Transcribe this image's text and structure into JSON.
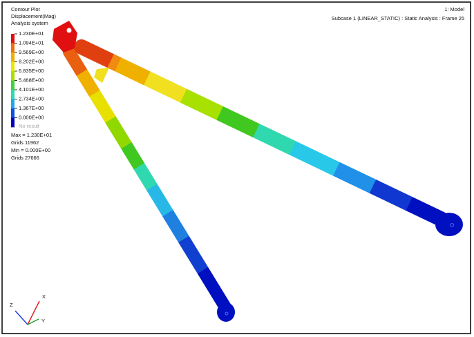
{
  "legend": {
    "title": [
      "Contour Plot",
      "Displacement(Mag)",
      "Analysis system"
    ],
    "levels": [
      "1.230E+01",
      "1.094E+01",
      "9.569E+00",
      "8.202E+00",
      "6.835E+00",
      "5.468E+00",
      "4.101E+00",
      "2.734E+00",
      "1.367E+00",
      "0.000E+00"
    ],
    "colors": [
      "#e01010",
      "#f07010",
      "#f0b000",
      "#e8e800",
      "#a8e000",
      "#40d040",
      "#30d8b0",
      "#20a8e8",
      "#1050e0",
      "#0000c0"
    ],
    "no_result": "No result",
    "stats": [
      "Max = 1.230E+01",
      "Grids 11962",
      "Min = 0.000E+00",
      "Grids 27666"
    ]
  },
  "header": {
    "model": "1: Model",
    "subcase": "Subcase 1 (LINEAR_STATIC) : Static Analysis : Frame 25"
  },
  "triad": {
    "z": "Z",
    "x": "X",
    "y": "Y"
  }
}
